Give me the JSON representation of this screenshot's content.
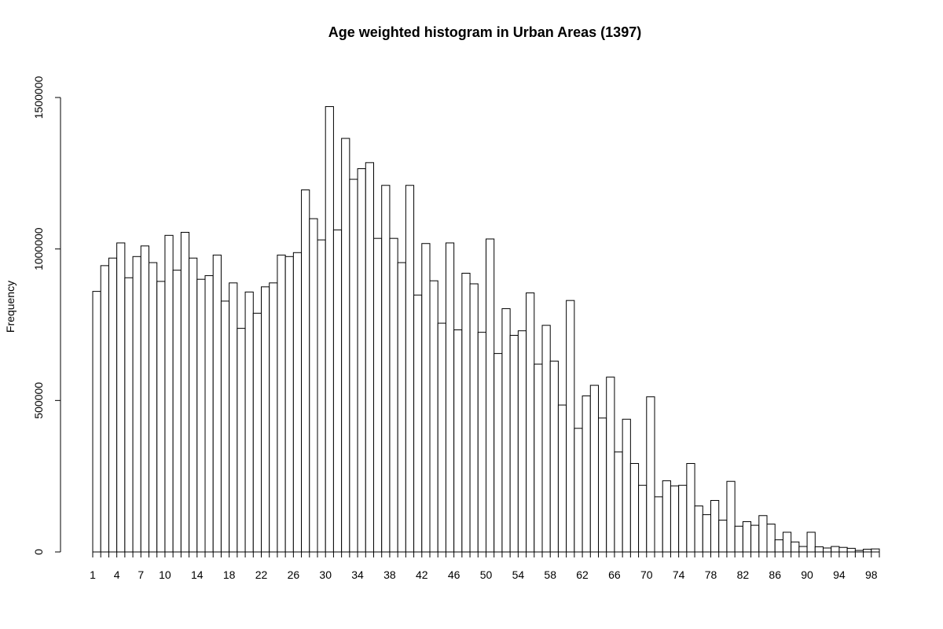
{
  "chart_data": {
    "type": "bar",
    "title": "Age weighted histogram in Urban Areas (1397)",
    "ylabel": "Frequency",
    "xlabel": "",
    "ylim": [
      0,
      1500000
    ],
    "y_ticks": [
      0,
      500000,
      1000000,
      1500000
    ],
    "y_tick_labels": [
      "0",
      "500000",
      "1000000",
      "1500000"
    ],
    "x_tick_labels": [
      "1",
      "4",
      "7",
      "10",
      "14",
      "18",
      "22",
      "26",
      "30",
      "34",
      "38",
      "42",
      "46",
      "50",
      "54",
      "58",
      "62",
      "66",
      "70",
      "74",
      "78",
      "82",
      "86",
      "90",
      "94",
      "98"
    ],
    "categories": [
      1,
      2,
      3,
      4,
      5,
      6,
      7,
      8,
      9,
      10,
      11,
      12,
      13,
      14,
      15,
      16,
      17,
      18,
      19,
      20,
      21,
      22,
      23,
      24,
      25,
      26,
      27,
      28,
      29,
      30,
      31,
      32,
      33,
      34,
      35,
      36,
      37,
      38,
      39,
      40,
      41,
      42,
      43,
      44,
      45,
      46,
      47,
      48,
      49,
      50,
      51,
      52,
      53,
      54,
      55,
      56,
      57,
      58,
      59,
      60,
      61,
      62,
      63,
      64,
      65,
      66,
      67,
      68,
      69,
      70,
      71,
      72,
      73,
      74,
      75,
      76,
      77,
      78,
      79,
      80,
      81,
      82,
      83,
      84,
      85,
      86,
      87,
      88,
      89,
      90,
      91,
      92,
      93,
      94,
      95,
      96,
      97,
      98
    ],
    "values": [
      860000,
      945000,
      970000,
      1020000,
      905000,
      975000,
      1010000,
      955000,
      893000,
      1045000,
      930000,
      1055000,
      970000,
      900000,
      912000,
      980000,
      828000,
      888000,
      738000,
      858000,
      788000,
      875000,
      888000,
      980000,
      975000,
      988000,
      1195000,
      1100000,
      1030000,
      1470000,
      1063000,
      1365000,
      1230000,
      1265000,
      1285000,
      1035000,
      1210000,
      1035000,
      955000,
      1210000,
      848000,
      1018000,
      895000,
      755000,
      1020000,
      733000,
      920000,
      885000,
      725000,
      1033000,
      655000,
      803000,
      715000,
      730000,
      855000,
      620000,
      748000,
      630000,
      485000,
      830000,
      408000,
      515000,
      550000,
      442000,
      577000,
      330000,
      438000,
      292000,
      220000,
      512000,
      182000,
      235000,
      218000,
      220000,
      292000,
      152000,
      123000,
      170000,
      105000,
      233000,
      85000,
      100000,
      88000,
      120000,
      92000,
      40000,
      65000,
      33000,
      18000,
      65000,
      17000,
      13000,
      18000,
      15000,
      12000,
      5000,
      9000,
      10000
    ]
  }
}
